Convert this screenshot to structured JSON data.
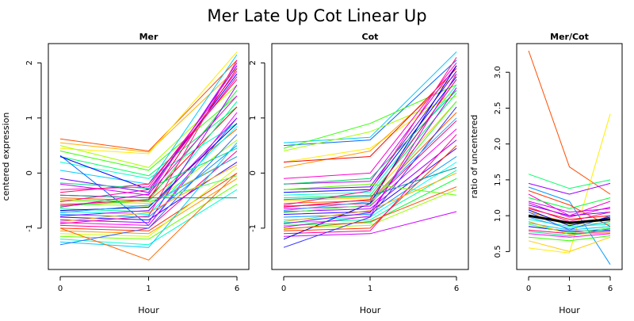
{
  "title": "Mer Late Up Cot Linear Up",
  "chart_data": [
    {
      "type": "line",
      "title": "Mer",
      "xlabel": "Hour",
      "ylabel": "centered expression",
      "x": [
        "0",
        "1",
        "6"
      ],
      "xlim": [
        0,
        2
      ],
      "ylim": [
        -1.75,
        2.35
      ],
      "yticks": [
        "-1",
        "0",
        "1",
        "2"
      ],
      "grid": false,
      "series": [
        {
          "color": "#ff4d00",
          "values": [
            0.62,
            0.4,
            2.05
          ]
        },
        {
          "color": "#ffb000",
          "values": [
            0.55,
            0.38,
            1.9
          ]
        },
        {
          "color": "#ffee00",
          "values": [
            0.45,
            0.35,
            2.2
          ]
        },
        {
          "color": "#aaff00",
          "values": [
            0.5,
            0.1,
            1.6
          ]
        },
        {
          "color": "#33ff00",
          "values": [
            0.4,
            0.05,
            1.4
          ]
        },
        {
          "color": "#00ff66",
          "values": [
            0.3,
            -0.05,
            1.2
          ]
        },
        {
          "color": "#00ffcc",
          "values": [
            0.2,
            -0.1,
            0.9
          ]
        },
        {
          "color": "#00ccff",
          "values": [
            0.05,
            -0.2,
            2.15
          ]
        },
        {
          "color": "#0066ff",
          "values": [
            0.32,
            -0.95,
            1.0
          ]
        },
        {
          "color": "#0000ff",
          "values": [
            0.3,
            -0.3,
            1.8
          ]
        },
        {
          "color": "#6600ff",
          "values": [
            -0.1,
            -0.35,
            1.95
          ]
        },
        {
          "color": "#cc00ff",
          "values": [
            -0.2,
            -0.4,
            2.0
          ]
        },
        {
          "color": "#ff00cc",
          "values": [
            -0.3,
            -0.25,
            1.85
          ]
        },
        {
          "color": "#ff0066",
          "values": [
            -0.35,
            -0.2,
            1.7
          ]
        },
        {
          "color": "#ff0000",
          "values": [
            -0.4,
            -0.45,
            1.2
          ]
        },
        {
          "color": "#ff6600",
          "values": [
            -0.45,
            -0.5,
            0.8
          ]
        },
        {
          "color": "#ffcc00",
          "values": [
            -0.5,
            -0.55,
            0.3
          ]
        },
        {
          "color": "#99ff00",
          "values": [
            -0.55,
            -0.6,
            0.6
          ]
        },
        {
          "color": "#00ff33",
          "values": [
            -0.6,
            -0.5,
            1.5
          ]
        },
        {
          "color": "#00ff99",
          "values": [
            -0.65,
            -0.7,
            1.3
          ]
        },
        {
          "color": "#00ffff",
          "values": [
            -0.7,
            -0.75,
            0.85
          ]
        },
        {
          "color": "#0099ff",
          "values": [
            -0.75,
            -0.8,
            0.5
          ]
        },
        {
          "color": "#3300ff",
          "values": [
            -0.8,
            -0.85,
            0.2
          ]
        },
        {
          "color": "#9900ff",
          "values": [
            -0.85,
            -0.9,
            1.6
          ]
        },
        {
          "color": "#ff00ff",
          "values": [
            -0.9,
            -0.95,
            1.1
          ]
        },
        {
          "color": "#ff0099",
          "values": [
            -0.95,
            -1.0,
            0.4
          ]
        },
        {
          "color": "#ff3300",
          "values": [
            -1.0,
            -1.05,
            0.0
          ]
        },
        {
          "color": "#ff9900",
          "values": [
            -1.05,
            -1.1,
            -0.1
          ]
        },
        {
          "color": "#ccff00",
          "values": [
            -1.1,
            -1.15,
            0.1
          ]
        },
        {
          "color": "#66ff00",
          "values": [
            -1.15,
            -1.2,
            -0.2
          ]
        },
        {
          "color": "#00ffcc",
          "values": [
            -1.2,
            -1.3,
            -0.3
          ]
        },
        {
          "color": "#00ccff",
          "values": [
            -1.25,
            -1.35,
            0.55
          ]
        },
        {
          "color": "#3366ff",
          "values": [
            -1.3,
            -1.0,
            0.7
          ]
        },
        {
          "color": "#ff6600",
          "values": [
            -1.0,
            -1.58,
            0.0
          ]
        },
        {
          "color": "#009999",
          "values": [
            -0.4,
            -0.45,
            -0.45
          ]
        },
        {
          "color": "#ff00aa",
          "values": [
            -0.52,
            -0.3,
            1.75
          ]
        },
        {
          "color": "#ee0055",
          "values": [
            -0.58,
            -0.48,
            1.9
          ]
        },
        {
          "color": "#dd00dd",
          "values": [
            -0.62,
            -0.38,
            1.4
          ]
        },
        {
          "color": "#0000cc",
          "values": [
            -0.68,
            -0.62,
            0.9
          ]
        },
        {
          "color": "#22aaff",
          "values": [
            -0.72,
            -0.58,
            0.3
          ]
        },
        {
          "color": "#44ff44",
          "values": [
            -0.48,
            -0.52,
            -0.05
          ]
        },
        {
          "color": "#ffaa00",
          "values": [
            -0.88,
            -0.72,
            0.15
          ]
        },
        {
          "color": "#aa00ff",
          "values": [
            -0.78,
            -0.68,
            1.0
          ]
        },
        {
          "color": "#ff1493",
          "values": [
            -0.92,
            -0.78,
            2.05
          ]
        },
        {
          "color": "#00dd88",
          "values": [
            -0.18,
            -0.28,
            0.45
          ]
        }
      ]
    },
    {
      "type": "line",
      "title": "Cot",
      "xlabel": "Hour",
      "ylabel": "",
      "x": [
        "0",
        "1",
        "6"
      ],
      "xlim": [
        0,
        2
      ],
      "ylim": [
        -1.75,
        2.35
      ],
      "yticks": [
        "-1",
        "0",
        "1",
        "2"
      ],
      "grid": false,
      "series": [
        {
          "color": "#00ccff",
          "values": [
            0.55,
            0.65,
            2.2
          ]
        },
        {
          "color": "#0066ff",
          "values": [
            0.5,
            0.6,
            2.05
          ]
        },
        {
          "color": "#33ff00",
          "values": [
            0.45,
            0.9,
            1.6
          ]
        },
        {
          "color": "#aaff00",
          "values": [
            0.4,
            0.75,
            1.4
          ]
        },
        {
          "color": "#ffee00",
          "values": [
            0.2,
            0.45,
            1.5
          ]
        },
        {
          "color": "#ff9900",
          "values": [
            0.1,
            0.4,
            1.8
          ]
        },
        {
          "color": "#ff0000",
          "values": [
            0.2,
            0.3,
            1.9
          ]
        },
        {
          "color": "#ff00cc",
          "values": [
            -0.1,
            0.0,
            2.0
          ]
        },
        {
          "color": "#cc00ff",
          "values": [
            -0.2,
            -0.15,
            1.95
          ]
        },
        {
          "color": "#6600ff",
          "values": [
            -0.3,
            -0.25,
            1.85
          ]
        },
        {
          "color": "#0000ff",
          "values": [
            -0.35,
            -0.3,
            1.75
          ]
        },
        {
          "color": "#00ffcc",
          "values": [
            -0.4,
            -0.35,
            1.6
          ]
        },
        {
          "color": "#00ff66",
          "values": [
            -0.45,
            -0.4,
            1.45
          ]
        },
        {
          "color": "#ffcc00",
          "values": [
            -0.5,
            -0.45,
            1.3
          ]
        },
        {
          "color": "#ff6600",
          "values": [
            -0.55,
            -0.5,
            1.1
          ]
        },
        {
          "color": "#ff0066",
          "values": [
            -0.6,
            -0.55,
            0.95
          ]
        },
        {
          "color": "#ff00ff",
          "values": [
            -0.65,
            -0.6,
            0.8
          ]
        },
        {
          "color": "#9900ff",
          "values": [
            -0.7,
            -0.65,
            0.6
          ]
        },
        {
          "color": "#3300ff",
          "values": [
            -0.75,
            -0.7,
            0.45
          ]
        },
        {
          "color": "#0099ff",
          "values": [
            -0.8,
            -0.75,
            0.3
          ]
        },
        {
          "color": "#00ffff",
          "values": [
            -0.85,
            -0.8,
            0.2
          ]
        },
        {
          "color": "#00ff99",
          "values": [
            -0.9,
            -0.85,
            0.05
          ]
        },
        {
          "color": "#00ff33",
          "values": [
            -0.95,
            -0.9,
            -0.1
          ]
        },
        {
          "color": "#99ff00",
          "values": [
            -1.0,
            -0.95,
            -0.3
          ]
        },
        {
          "color": "#ff3300",
          "values": [
            -1.05,
            -1.0,
            0.5
          ]
        },
        {
          "color": "#ff0099",
          "values": [
            -1.1,
            -1.05,
            0.7
          ]
        },
        {
          "color": "#cc00ff",
          "values": [
            -1.15,
            -1.1,
            -0.7
          ]
        },
        {
          "color": "#3333ff",
          "values": [
            -1.35,
            -0.8,
            1.2
          ]
        },
        {
          "color": "#0000cc",
          "values": [
            -1.2,
            -0.55,
            1.95
          ]
        },
        {
          "color": "#00cc66",
          "values": [
            -0.2,
            -0.1,
            1.5
          ]
        },
        {
          "color": "#ff1493",
          "values": [
            -0.58,
            -0.32,
            2.1
          ]
        },
        {
          "color": "#ee0055",
          "values": [
            -0.62,
            -0.48,
            1.7
          ]
        },
        {
          "color": "#22aaff",
          "values": [
            -0.68,
            -0.52,
            1.0
          ]
        },
        {
          "color": "#44ff44",
          "values": [
            -0.72,
            -0.58,
            1.3
          ]
        },
        {
          "color": "#ffaa00",
          "values": [
            -0.88,
            -0.68,
            0.0
          ]
        },
        {
          "color": "#aa00ff",
          "values": [
            -0.92,
            -0.72,
            1.55
          ]
        },
        {
          "color": "#dd00dd",
          "values": [
            -0.98,
            -0.78,
            1.8
          ]
        },
        {
          "color": "#009999",
          "values": [
            -0.48,
            -0.42,
            0.1
          ]
        },
        {
          "color": "#66ff00",
          "values": [
            -0.3,
            -0.2,
            -0.4
          ]
        },
        {
          "color": "#ff4d00",
          "values": [
            -1.02,
            -0.88,
            -0.25
          ]
        }
      ]
    },
    {
      "type": "line",
      "title": "Mer/Cot",
      "xlabel": "Hour",
      "ylabel": "ratio of uncentered",
      "x": [
        "0",
        "1",
        "6"
      ],
      "xlim": [
        0,
        2
      ],
      "ylim": [
        0.25,
        3.4
      ],
      "yticks": [
        "0.5",
        "1.0",
        "1.5",
        "2.0",
        "2.5",
        "3.0"
      ],
      "grid": false,
      "series": [
        {
          "color": "#ff4d00",
          "values": [
            3.3,
            1.68,
            1.3
          ]
        },
        {
          "color": "#ffee00",
          "values": [
            0.55,
            0.48,
            2.42
          ]
        },
        {
          "color": "#00ff66",
          "values": [
            1.58,
            1.38,
            1.5
          ]
        },
        {
          "color": "#0099ff",
          "values": [
            1.4,
            1.2,
            0.32
          ]
        },
        {
          "color": "#ff00cc",
          "values": [
            1.3,
            1.0,
            1.2
          ]
        },
        {
          "color": "#cc00ff",
          "values": [
            1.2,
            1.05,
            1.1
          ]
        },
        {
          "color": "#6600ff",
          "values": [
            1.15,
            1.0,
            1.05
          ]
        },
        {
          "color": "#ff0000",
          "values": [
            1.1,
            0.95,
            1.0
          ]
        },
        {
          "color": "#ff9900",
          "values": [
            1.05,
            0.9,
            0.95
          ]
        },
        {
          "color": "#aaff00",
          "values": [
            1.0,
            0.88,
            0.9
          ]
        },
        {
          "color": "#00ffcc",
          "values": [
            0.95,
            0.85,
            0.88
          ]
        },
        {
          "color": "#00ccff",
          "values": [
            0.9,
            0.8,
            0.85
          ]
        },
        {
          "color": "#0000ff",
          "values": [
            0.85,
            0.78,
            0.8
          ]
        },
        {
          "color": "#ff0066",
          "values": [
            0.8,
            0.75,
            0.78
          ]
        },
        {
          "color": "#ff00ff",
          "values": [
            0.75,
            0.7,
            0.75
          ]
        },
        {
          "color": "#33ff00",
          "values": [
            0.7,
            0.65,
            0.72
          ]
        },
        {
          "color": "#ffcc00",
          "values": [
            0.65,
            0.5,
            0.7
          ]
        },
        {
          "color": "#00ff33",
          "values": [
            1.25,
            1.1,
            1.25
          ]
        },
        {
          "color": "#ff3300",
          "values": [
            1.35,
            1.15,
            0.85
          ]
        },
        {
          "color": "#9900ff",
          "values": [
            1.45,
            1.3,
            1.45
          ]
        },
        {
          "color": "#3366ff",
          "values": [
            1.05,
            0.8,
            1.0
          ]
        },
        {
          "color": "#ff1493",
          "values": [
            1.12,
            0.92,
            1.05
          ]
        },
        {
          "color": "#22aaff",
          "values": [
            0.98,
            0.82,
            0.92
          ]
        },
        {
          "color": "#44ff44",
          "values": [
            0.88,
            0.76,
            0.83
          ]
        },
        {
          "color": "#dd00dd",
          "values": [
            1.18,
            0.98,
            1.12
          ]
        },
        {
          "color": "#ffaa00",
          "values": [
            0.92,
            0.74,
            0.76
          ]
        },
        {
          "color": "#0000cc",
          "values": [
            1.08,
            0.86,
            0.98
          ]
        },
        {
          "color": "#00dd88",
          "values": [
            0.78,
            0.72,
            0.82
          ]
        },
        {
          "color": "#000000",
          "width": 3,
          "values": [
            1.0,
            0.9,
            0.95
          ]
        }
      ]
    }
  ]
}
